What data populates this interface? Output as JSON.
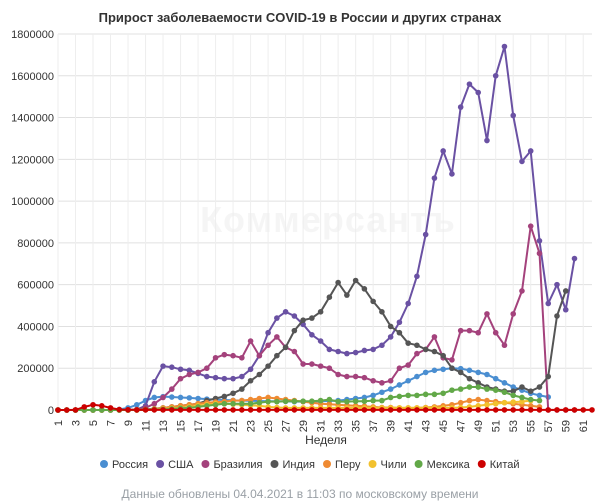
{
  "footer": "Данные обновлены 04.04.2021 в 11:03 по московскому времени",
  "watermark": "Коммерсантъ",
  "chart_data": {
    "type": "line",
    "title": "Прирост заболеваемости COVID-19 в России и других странах",
    "xlabel": "Неделя",
    "ylabel": "",
    "x": [
      1,
      2,
      3,
      4,
      5,
      6,
      7,
      8,
      9,
      10,
      11,
      12,
      13,
      14,
      15,
      16,
      17,
      18,
      19,
      20,
      21,
      22,
      23,
      24,
      25,
      26,
      27,
      28,
      29,
      30,
      31,
      32,
      33,
      34,
      35,
      36,
      37,
      38,
      39,
      40,
      41,
      42,
      43,
      44,
      45,
      46,
      47,
      48,
      49,
      50,
      51,
      52,
      53,
      54,
      55,
      56,
      57,
      58,
      59,
      60,
      61,
      62
    ],
    "xticks": [
      "1",
      "3",
      "5",
      "7",
      "9",
      "11",
      "13",
      "15",
      "17",
      "19",
      "21",
      "23",
      "25",
      "27",
      "29",
      "31",
      "33",
      "35",
      "37",
      "39",
      "41",
      "43",
      "45",
      "47",
      "49",
      "51",
      "53",
      "55",
      "57",
      "59",
      "61"
    ],
    "ylim": [
      0,
      1800000
    ],
    "yticks": [
      "0",
      "200000",
      "400000",
      "600000",
      "800000",
      "1000000",
      "1200000",
      "1400000",
      "1600000",
      "1800000"
    ],
    "grid": true,
    "legend_position": "bottom",
    "series": [
      {
        "name": "Россия",
        "color": "#4a8ed1",
        "x": [
          1,
          2,
          3,
          4,
          5,
          6,
          7,
          8,
          9,
          10,
          11,
          12,
          13,
          14,
          15,
          16,
          17,
          18,
          19,
          20,
          21,
          22,
          23,
          24,
          25,
          26,
          27,
          28,
          29,
          30,
          31,
          32,
          33,
          34,
          35,
          36,
          37,
          38,
          39,
          40,
          41,
          42,
          43,
          44,
          45,
          46,
          47,
          48,
          49,
          50,
          51,
          52,
          53,
          54,
          55,
          56,
          57
        ],
        "values": [
          0,
          0,
          0,
          0,
          0,
          0,
          500,
          2500,
          10000,
          25000,
          45000,
          60000,
          64000,
          62000,
          60000,
          58000,
          55000,
          52000,
          50000,
          48000,
          46000,
          45000,
          44000,
          43000,
          42000,
          42000,
          41000,
          40000,
          40000,
          40000,
          42000,
          43000,
          45000,
          50000,
          55000,
          60000,
          70000,
          85000,
          100000,
          120000,
          140000,
          160000,
          180000,
          190000,
          195000,
          200000,
          198000,
          190000,
          180000,
          170000,
          150000,
          130000,
          110000,
          95000,
          80000,
          70000,
          62000
        ]
      },
      {
        "name": "США",
        "color": "#6a51a3",
        "x": [
          1,
          2,
          3,
          4,
          5,
          6,
          7,
          8,
          9,
          10,
          11,
          12,
          13,
          14,
          15,
          16,
          17,
          18,
          19,
          20,
          21,
          22,
          23,
          24,
          25,
          26,
          27,
          28,
          29,
          30,
          31,
          32,
          33,
          34,
          35,
          36,
          37,
          38,
          39,
          40,
          41,
          42,
          43,
          44,
          45,
          46,
          47,
          48,
          49,
          50,
          51,
          52,
          53,
          54,
          55,
          56,
          57,
          58,
          59,
          60
        ],
        "values": [
          0,
          0,
          0,
          0,
          0,
          0,
          0,
          0,
          0,
          2000,
          20000,
          135000,
          210000,
          205000,
          195000,
          190000,
          175000,
          160000,
          155000,
          150000,
          150000,
          160000,
          195000,
          260000,
          370000,
          440000,
          470000,
          450000,
          410000,
          360000,
          330000,
          290000,
          280000,
          270000,
          275000,
          285000,
          290000,
          310000,
          350000,
          420000,
          510000,
          640000,
          840000,
          1110000,
          1240000,
          1130000,
          1450000,
          1560000,
          1520000,
          1290000,
          1600000,
          1740000,
          1410000,
          1190000,
          1240000,
          810000,
          510000,
          600000,
          480000,
          725000
        ]
      },
      {
        "name": "Бразилия",
        "color": "#a4427c",
        "x": [
          1,
          2,
          3,
          4,
          5,
          6,
          7,
          8,
          9,
          10,
          11,
          12,
          13,
          14,
          15,
          16,
          17,
          18,
          19,
          20,
          21,
          22,
          23,
          24,
          25,
          26,
          27,
          28,
          29,
          30,
          31,
          32,
          33,
          34,
          35,
          36,
          37,
          38,
          39,
          40,
          41,
          42,
          43,
          44,
          45,
          46,
          47,
          48,
          49,
          50,
          51,
          52,
          53,
          54,
          55,
          56,
          57,
          58,
          59,
          60
        ],
        "values": [
          0,
          0,
          0,
          0,
          0,
          0,
          0,
          0,
          0,
          2000,
          10000,
          30000,
          60000,
          100000,
          150000,
          170000,
          180000,
          200000,
          250000,
          265000,
          260000,
          250000,
          330000,
          260000,
          310000,
          350000,
          300000,
          280000,
          220000,
          220000,
          210000,
          200000,
          170000,
          160000,
          160000,
          155000,
          140000,
          130000,
          140000,
          200000,
          215000,
          270000,
          290000,
          350000,
          250000,
          240000,
          380000,
          380000,
          370000,
          460000,
          370000,
          310000,
          460000,
          570000,
          880000,
          750000,
          0,
          0,
          0,
          0
        ]
      },
      {
        "name": "Индия",
        "color": "#555555",
        "x": [
          1,
          2,
          3,
          4,
          5,
          6,
          7,
          8,
          9,
          10,
          11,
          12,
          13,
          14,
          15,
          16,
          17,
          18,
          19,
          20,
          21,
          22,
          23,
          24,
          25,
          26,
          27,
          28,
          29,
          30,
          31,
          32,
          33,
          34,
          35,
          36,
          37,
          38,
          39,
          40,
          41,
          42,
          43,
          44,
          45,
          46,
          47,
          48,
          49,
          50,
          51,
          52,
          53,
          54,
          55,
          56,
          57,
          58,
          59
        ],
        "values": [
          0,
          0,
          0,
          0,
          0,
          0,
          0,
          0,
          0,
          1000,
          3000,
          6000,
          10000,
          15000,
          20000,
          25000,
          30000,
          45000,
          55000,
          65000,
          80000,
          100000,
          140000,
          170000,
          210000,
          260000,
          300000,
          380000,
          430000,
          440000,
          470000,
          540000,
          610000,
          550000,
          620000,
          580000,
          520000,
          470000,
          400000,
          370000,
          320000,
          310000,
          290000,
          280000,
          260000,
          200000,
          180000,
          150000,
          130000,
          110000,
          100000,
          90000,
          90000,
          110000,
          90000,
          110000,
          160000,
          450000,
          570000
        ]
      },
      {
        "name": "Перу",
        "color": "#ef8a32",
        "x": [
          1,
          2,
          3,
          4,
          5,
          6,
          7,
          8,
          9,
          10,
          11,
          12,
          13,
          14,
          15,
          16,
          17,
          18,
          19,
          20,
          21,
          22,
          23,
          24,
          25,
          26,
          27,
          28,
          29,
          30,
          31,
          32,
          33,
          34,
          35,
          36,
          37,
          38,
          39,
          40,
          41,
          42,
          43,
          44,
          45,
          46,
          47,
          48,
          49,
          50,
          51,
          52,
          53,
          54,
          55,
          56
        ],
        "values": [
          0,
          0,
          0,
          0,
          0,
          0,
          0,
          0,
          0,
          0,
          1000,
          5000,
          10000,
          15000,
          20000,
          25000,
          30000,
          35000,
          38000,
          40000,
          45000,
          45000,
          50000,
          55000,
          60000,
          55000,
          50000,
          45000,
          40000,
          35000,
          30000,
          28000,
          25000,
          22000,
          20000,
          18000,
          15000,
          12000,
          12000,
          10000,
          10000,
          10000,
          12000,
          15000,
          20000,
          25000,
          35000,
          45000,
          50000,
          45000,
          40000,
          35000,
          30000,
          25000,
          20000,
          15000
        ]
      },
      {
        "name": "Чили",
        "color": "#f2c12e",
        "x": [
          1,
          2,
          3,
          4,
          5,
          6,
          7,
          8,
          9,
          10,
          11,
          12,
          13,
          14,
          15,
          16,
          17,
          18,
          19,
          20,
          21,
          22,
          23,
          24,
          25,
          26,
          27,
          28,
          29,
          30,
          31,
          32,
          33,
          34,
          35,
          36,
          37,
          38,
          39,
          40,
          41,
          42,
          43,
          44,
          45,
          46,
          47,
          48,
          49,
          50,
          51,
          52,
          53,
          54,
          55
        ],
        "values": [
          0,
          0,
          0,
          0,
          0,
          0,
          0,
          0,
          0,
          0,
          1000,
          3000,
          5000,
          8000,
          10000,
          15000,
          20000,
          25000,
          30000,
          30000,
          28000,
          25000,
          22000,
          20000,
          15000,
          12000,
          10000,
          10000,
          10000,
          10000,
          10000,
          10000,
          10000,
          10000,
          10000,
          10000,
          10000,
          10000,
          10000,
          10000,
          10000,
          10000,
          10000,
          10000,
          10000,
          10000,
          12000,
          15000,
          20000,
          25000,
          30000,
          35000,
          38000,
          40000,
          45000
        ]
      },
      {
        "name": "Мексика",
        "color": "#62a848",
        "x": [
          1,
          2,
          3,
          4,
          5,
          6,
          7,
          8,
          9,
          10,
          11,
          12,
          13,
          14,
          15,
          16,
          17,
          18,
          19,
          20,
          21,
          22,
          23,
          24,
          25,
          26,
          27,
          28,
          29,
          30,
          31,
          32,
          33,
          34,
          35,
          36,
          37,
          38,
          39,
          40,
          41,
          42,
          43,
          44,
          45,
          46,
          47,
          48,
          49,
          50,
          51,
          52,
          53,
          54,
          55,
          56
        ],
        "values": [
          0,
          0,
          0,
          0,
          0,
          0,
          0,
          0,
          0,
          0,
          1000,
          2000,
          3000,
          5000,
          8000,
          10000,
          15000,
          20000,
          25000,
          30000,
          30000,
          30000,
          30000,
          35000,
          40000,
          40000,
          42000,
          42000,
          42000,
          42000,
          45000,
          50000,
          40000,
          40000,
          42000,
          42000,
          45000,
          45000,
          60000,
          65000,
          70000,
          70000,
          75000,
          75000,
          80000,
          95000,
          100000,
          110000,
          110000,
          100000,
          95000,
          85000,
          70000,
          60000,
          50000,
          45000
        ]
      },
      {
        "name": "Китай",
        "color": "#cc0000",
        "x": [
          1,
          2,
          3,
          4,
          5,
          6,
          7,
          8,
          9,
          10,
          11,
          12,
          13,
          14,
          15,
          16,
          17,
          18,
          19,
          20,
          21,
          22,
          23,
          24,
          25,
          26,
          27,
          28,
          29,
          30,
          31,
          32,
          33,
          34,
          35,
          36,
          37,
          38,
          39,
          40,
          41,
          42,
          43,
          44,
          45,
          46,
          47,
          48,
          49,
          50,
          51,
          52,
          53,
          54,
          55,
          56,
          57,
          58,
          59,
          60,
          61,
          62
        ],
        "values": [
          0,
          0,
          500,
          15000,
          25000,
          20000,
          10000,
          2000,
          1000,
          500,
          500,
          500,
          500,
          500,
          500,
          500,
          500,
          500,
          500,
          500,
          500,
          500,
          500,
          500,
          500,
          500,
          500,
          500,
          500,
          500,
          500,
          500,
          500,
          500,
          500,
          500,
          500,
          500,
          500,
          500,
          500,
          500,
          500,
          500,
          500,
          500,
          500,
          500,
          500,
          500,
          500,
          500,
          500,
          500,
          500,
          500,
          500,
          500,
          500,
          500,
          500,
          500
        ]
      }
    ]
  }
}
